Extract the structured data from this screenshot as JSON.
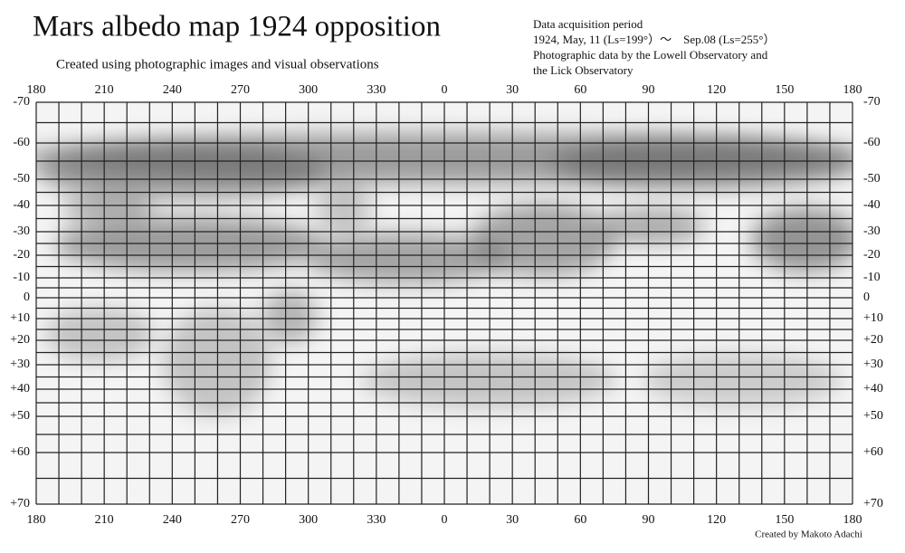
{
  "header": {
    "title": "Mars albedo map 1924 opposition",
    "subtitle": "Created using photographic images and visual observations",
    "info": [
      "Data acquisition period",
      "1924, May, 11 (Ls=199°）～　Sep.08 (Ls=255°）",
      "Photographic data by the Lowell Observatory and",
      "the Lick Observatory"
    ]
  },
  "map": {
    "longitude_labels": [
      "180",
      "210",
      "240",
      "270",
      "300",
      "330",
      "0",
      "30",
      "60",
      "90",
      "120",
      "150",
      "180"
    ],
    "latitude_labels": [
      "-70",
      "-60",
      "-50",
      "-40",
      "-30",
      "-20",
      "-10",
      "0",
      "+10",
      "+20",
      "+30",
      "+40",
      "+50",
      "+60",
      "+70"
    ]
  },
  "credit": "Created by Makoto Adachi"
}
